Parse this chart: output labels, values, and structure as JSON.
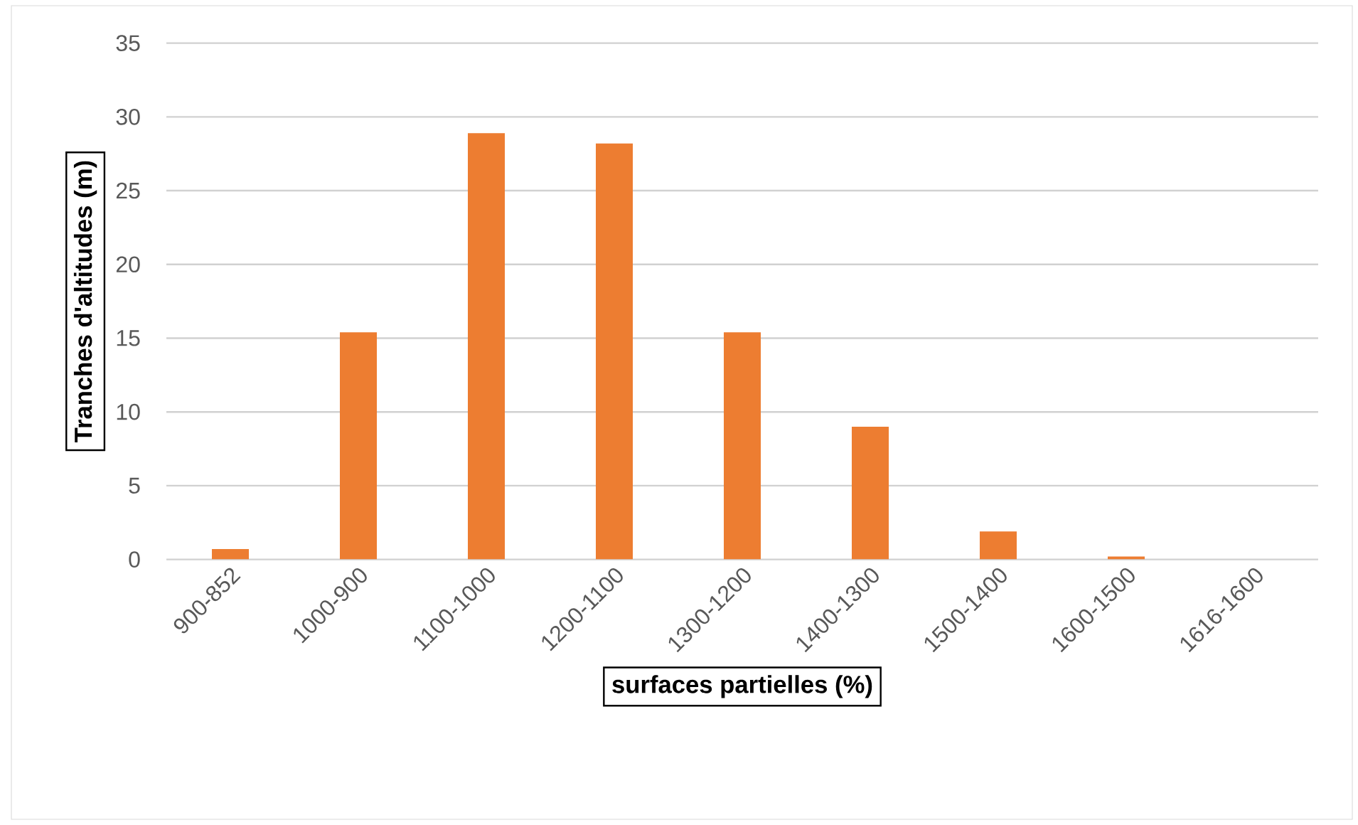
{
  "chart_data": {
    "type": "bar",
    "xlabel": "surfaces partielles (%)",
    "ylabel": "Tranches d'altitudes (m)",
    "categories": [
      "900-852",
      "1000-900",
      "1100-1000",
      "1200-1100",
      "1300-1200",
      "1400-1300",
      "1500-1400",
      "1600-1500",
      "1616-1600"
    ],
    "values": [
      0.7,
      15.4,
      28.9,
      28.2,
      15.4,
      9.0,
      1.9,
      0.2,
      0
    ],
    "color": "#ed7d31",
    "ylim": [
      0,
      35
    ],
    "yticks": [
      0,
      5,
      10,
      15,
      20,
      25,
      30,
      35
    ],
    "grid": "y"
  }
}
